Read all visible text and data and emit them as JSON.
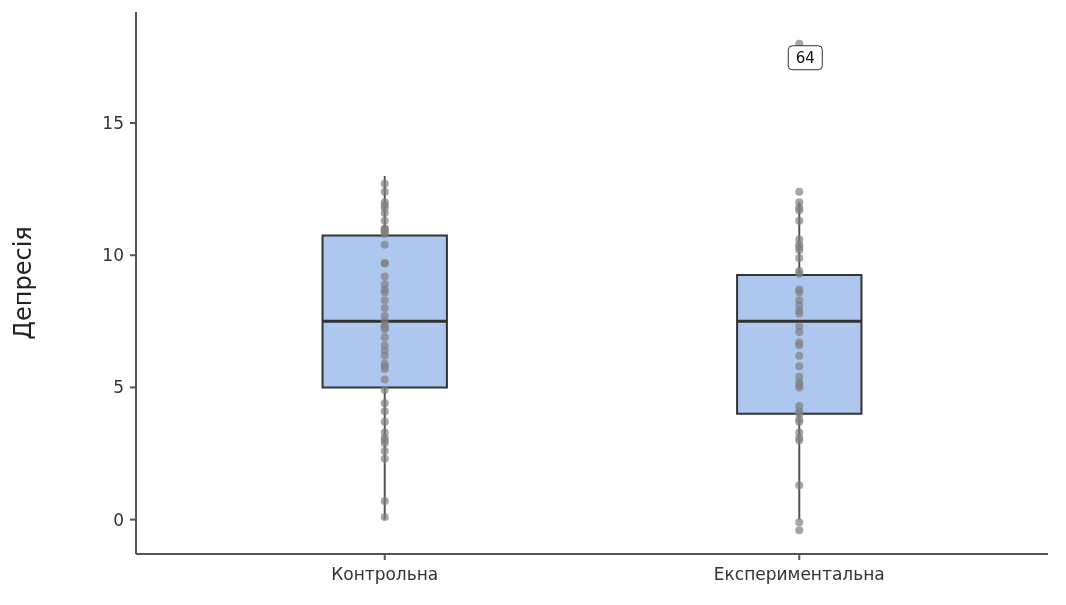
{
  "chart_data": {
    "type": "box",
    "ylabel": "Депресія",
    "categories": [
      "Контрольна",
      "Експериментальна"
    ],
    "color": "#aec7ef",
    "boxes": [
      {
        "low": 0,
        "q1": 5,
        "median": 7.5,
        "q3": 10.75,
        "high": 13
      },
      {
        "low": 0,
        "q1": 4,
        "median": 7.5,
        "q3": 9.25,
        "high": 12,
        "outliers": [
          18
        ]
      }
    ],
    "series": [
      {
        "type": "scatter",
        "color": "#808080",
        "x": [
          "Контрольна",
          "Контрольна",
          "Контрольна",
          "Контрольна",
          "Контрольна",
          "Контрольна",
          "Контрольна",
          "Контрольна",
          "Контрольна",
          "Контрольна",
          "Контрольна",
          "Контрольна",
          "Контрольна",
          "Контрольна",
          "Контрольна",
          "Контрольна",
          "Контрольна",
          "Контрольна",
          "Контрольна",
          "Контрольна",
          "Контрольна",
          "Контрольна",
          "Контрольна",
          "Контрольна",
          "Контрольна",
          "Контрольна",
          "Контрольна",
          "Контрольна",
          "Контрольна",
          "Контрольна",
          "Контрольна",
          "Контрольна",
          "Контрольна",
          "Контрольна",
          "Контрольна",
          "Контрольна",
          "Контрольна",
          "Контрольна",
          "Контрольна",
          "Контрольна",
          "Контрольна",
          "Контрольна",
          "Контрольна",
          "Контрольна",
          "Контрольна",
          "Контрольна",
          "Експериментальна",
          "Експериментальна",
          "Експериментальна",
          "Експериментальна",
          "Експериментальна",
          "Експериментальна",
          "Експериментальна",
          "Експериментальна",
          "Експериментальна",
          "Експериментальна",
          "Експериментальна",
          "Експериментальна",
          "Експериментальна",
          "Експериментальна",
          "Експериментальна",
          "Експериментальна",
          "Експериментальна",
          "Експериментальна",
          "Експериментальна",
          "Експериментальна",
          "Експериментальна",
          "Експериментальна",
          "Експериментальна",
          "Експериментальна",
          "Експериментальна",
          "Експериментальна",
          "Експериментальна",
          "Експериментальна",
          "Експериментальна",
          "Експериментальна",
          "Експериментальна",
          "Експериментальна",
          "Експериментальна",
          "Експериментальна",
          "Експериментальна",
          "Експериментальна",
          "Експериментальна",
          "Експериментальна",
          "Експериментальна"
        ],
        "values": [
          12.7,
          12.4,
          12.0,
          11.8,
          11.9,
          11.6,
          11.3,
          11.0,
          11.0,
          10.9,
          10.8,
          10.9,
          10.4,
          9.7,
          9.7,
          9.2,
          8.9,
          8.7,
          8.6,
          8.3,
          8.0,
          7.7,
          7.5,
          7.3,
          7.3,
          7.2,
          6.9,
          6.6,
          6.4,
          6.2,
          5.9,
          5.8,
          5.7,
          5.3,
          4.9,
          4.4,
          4.1,
          3.7,
          3.3,
          3.1,
          3.0,
          2.9,
          2.6,
          2.3,
          0.7,
          0.1,
          12.4,
          12.0,
          11.8,
          11.7,
          11.3,
          10.6,
          10.4,
          10.3,
          10.2,
          9.9,
          9.4,
          9.3,
          8.7,
          8.6,
          8.3,
          8.1,
          7.9,
          7.8,
          7.3,
          7.1,
          6.7,
          6.6,
          6.2,
          5.8,
          5.4,
          5.2,
          5.1,
          5.0,
          4.3,
          4.1,
          4.0,
          3.8,
          3.7,
          3.3,
          3.1,
          3.0,
          1.3,
          -0.1,
          -0.4
        ]
      }
    ],
    "annotations": [
      "64"
    ],
    "ylim": [
      -1.3,
      19.2
    ],
    "yticks": [
      0,
      5,
      10,
      15
    ],
    "grid": false,
    "legend": false
  }
}
